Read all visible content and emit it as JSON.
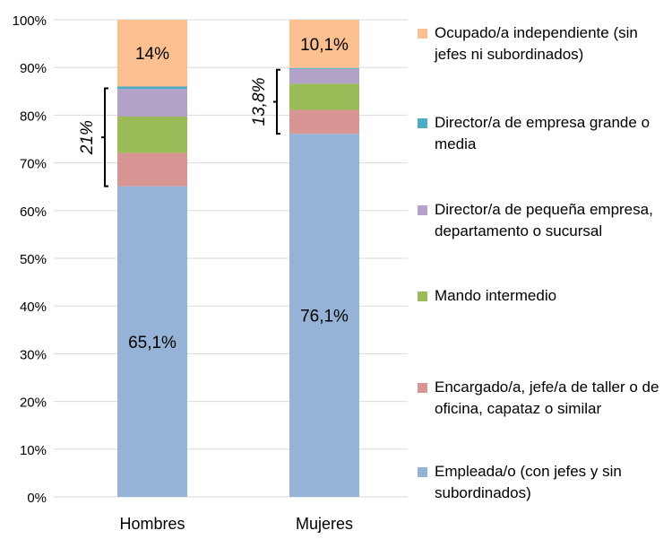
{
  "chart_data": {
    "type": "bar",
    "stacked": true,
    "categories": [
      "Hombres",
      "Mujeres"
    ],
    "ylim": [
      0,
      100
    ],
    "yticks": [
      "0%",
      "10%",
      "20%",
      "30%",
      "40%",
      "50%",
      "60%",
      "70%",
      "80%",
      "90%",
      "100%"
    ],
    "grid": true,
    "legend_placement": "right",
    "series": [
      {
        "name": "Empleada/o (con jefes y sin subordinados)",
        "color": "#95b3d7",
        "values": [
          65.1,
          76.1
        ]
      },
      {
        "name": "Encargado/a, jefe/a de taller o de oficina, capataz o similar",
        "color": "#d99594",
        "values": [
          7.0,
          5.0
        ]
      },
      {
        "name": "Mando intermedio",
        "color": "#9bbb59",
        "values": [
          7.6,
          5.5
        ]
      },
      {
        "name": "Director/a de pequeña empresa, departamento o sucursal",
        "color": "#b2a2c7",
        "values": [
          5.8,
          3.1
        ]
      },
      {
        "name": "Director/a de empresa grande o media",
        "color": "#4bacc6",
        "values": [
          0.5,
          0.2
        ]
      },
      {
        "name": "Ocupado/a independiente (sin jefes ni subordinados)",
        "color": "#fac090",
        "values": [
          14.0,
          10.1
        ]
      }
    ],
    "data_labels": {
      "Empleada": [
        "65,1%",
        "76,1%"
      ],
      "Ocupado": [
        "14%",
        "10,1%"
      ]
    },
    "annotations": [
      {
        "category": "Hombres",
        "text": "21%"
      },
      {
        "category": "Mujeres",
        "text": "13,8%"
      }
    ]
  }
}
